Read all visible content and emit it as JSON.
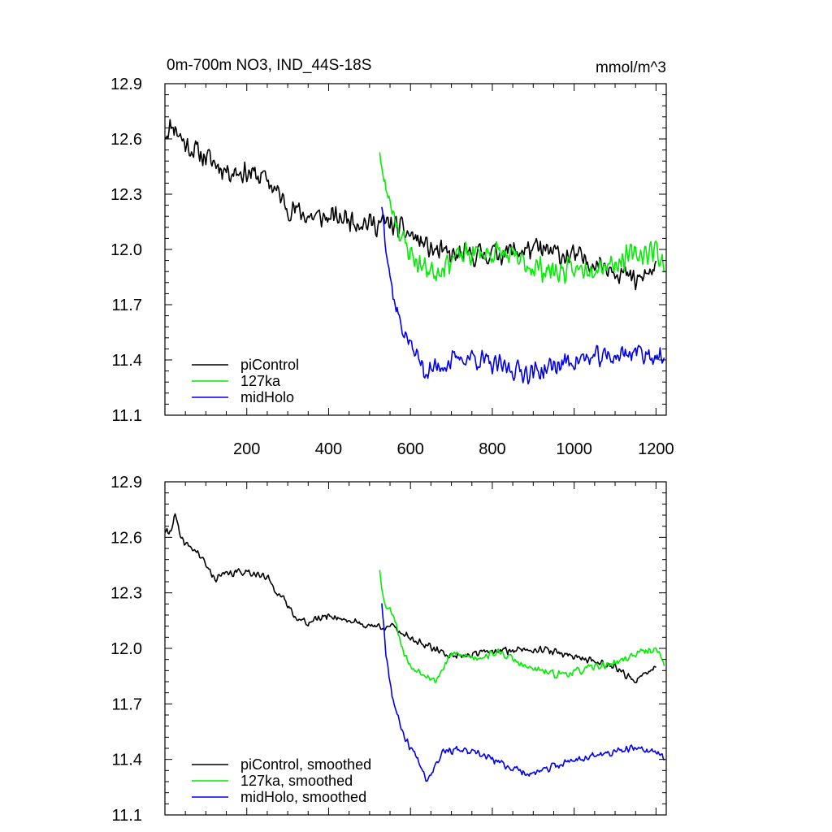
{
  "chart_data": [
    {
      "type": "line",
      "title": "0m-700m NO3, IND_44S-18S",
      "units": "mmol/m^3",
      "xlim": [
        0,
        1225
      ],
      "ylim": [
        11.1,
        12.9
      ],
      "xticks": [
        200,
        400,
        600,
        800,
        1000,
        1200
      ],
      "yticks": [
        11.1,
        11.4,
        11.7,
        12.0,
        12.3,
        12.6,
        12.9
      ],
      "ytick_labels": [
        "11.1",
        "11.4",
        "11.7",
        "12.0",
        "12.3",
        "12.6",
        "12.9"
      ],
      "show_xtick_labels": true,
      "legend_position": "bottom-left",
      "series": [
        {
          "name": "piControl",
          "color": "#000000",
          "noise": 0.075,
          "seed": 11,
          "points": [
            [
              0,
              12.63
            ],
            [
              20,
              12.68
            ],
            [
              50,
              12.57
            ],
            [
              100,
              12.5
            ],
            [
              150,
              12.43
            ],
            [
              200,
              12.42
            ],
            [
              250,
              12.38
            ],
            [
              300,
              12.23
            ],
            [
              350,
              12.18
            ],
            [
              400,
              12.17
            ],
            [
              450,
              12.17
            ],
            [
              500,
              12.14
            ],
            [
              550,
              12.14
            ],
            [
              600,
              12.08
            ],
            [
              650,
              12.0
            ],
            [
              700,
              11.96
            ],
            [
              800,
              11.98
            ],
            [
              900,
              12.0
            ],
            [
              1000,
              11.96
            ],
            [
              1100,
              11.9
            ],
            [
              1150,
              11.82
            ],
            [
              1200,
              11.9
            ]
          ]
        },
        {
          "name": "127ka",
          "color": "#00ee00",
          "noise": 0.08,
          "seed": 23,
          "points": [
            [
              525,
              12.55
            ],
            [
              535,
              12.35
            ],
            [
              560,
              12.2
            ],
            [
              580,
              12.05
            ],
            [
              620,
              11.92
            ],
            [
              660,
              11.88
            ],
            [
              700,
              11.95
            ],
            [
              760,
              11.98
            ],
            [
              820,
              11.98
            ],
            [
              880,
              11.92
            ],
            [
              950,
              11.88
            ],
            [
              1000,
              11.88
            ],
            [
              1050,
              11.92
            ],
            [
              1100,
              11.93
            ],
            [
              1150,
              11.97
            ],
            [
              1200,
              12.0
            ],
            [
              1220,
              11.92
            ]
          ]
        },
        {
          "name": "midHolo",
          "color": "#0000ee",
          "noise": 0.07,
          "seed": 37,
          "points": [
            [
              530,
              12.25
            ],
            [
              545,
              11.95
            ],
            [
              555,
              11.78
            ],
            [
              575,
              11.6
            ],
            [
              600,
              11.48
            ],
            [
              640,
              11.33
            ],
            [
              680,
              11.38
            ],
            [
              750,
              11.42
            ],
            [
              800,
              11.37
            ],
            [
              900,
              11.33
            ],
            [
              1000,
              11.4
            ],
            [
              1100,
              11.42
            ],
            [
              1150,
              11.45
            ],
            [
              1200,
              11.42
            ],
            [
              1220,
              11.39
            ]
          ]
        }
      ]
    },
    {
      "type": "line",
      "title": "",
      "units": "",
      "xlim": [
        0,
        1225
      ],
      "ylim": [
        11.1,
        12.9
      ],
      "xticks": [
        200,
        400,
        600,
        800,
        1000,
        1200
      ],
      "yticks": [
        11.1,
        11.4,
        11.7,
        12.0,
        12.3,
        12.6,
        12.9
      ],
      "ytick_labels": [
        "11.1",
        "11.4",
        "11.7",
        "12.0",
        "12.3",
        "12.6",
        "12.9"
      ],
      "show_xtick_labels": false,
      "legend_position": "bottom-left",
      "series": [
        {
          "name": "piControl, smoothed",
          "color": "#000000",
          "noise": 0.025,
          "seed": 41,
          "points": [
            [
              0,
              12.63
            ],
            [
              10,
              12.62
            ],
            [
              25,
              12.72
            ],
            [
              40,
              12.58
            ],
            [
              80,
              12.52
            ],
            [
              120,
              12.38
            ],
            [
              150,
              12.4
            ],
            [
              200,
              12.42
            ],
            [
              250,
              12.38
            ],
            [
              300,
              12.23
            ],
            [
              330,
              12.15
            ],
            [
              350,
              12.14
            ],
            [
              400,
              12.18
            ],
            [
              450,
              12.15
            ],
            [
              500,
              12.12
            ],
            [
              550,
              12.12
            ],
            [
              600,
              12.06
            ],
            [
              650,
              12.0
            ],
            [
              700,
              11.96
            ],
            [
              800,
              11.98
            ],
            [
              900,
              12.0
            ],
            [
              1000,
              11.96
            ],
            [
              1100,
              11.9
            ],
            [
              1150,
              11.82
            ],
            [
              1200,
              11.9
            ]
          ]
        },
        {
          "name": "127ka, smoothed",
          "color": "#00ee00",
          "noise": 0.025,
          "seed": 53,
          "points": [
            [
              525,
              12.43
            ],
            [
              535,
              12.25
            ],
            [
              560,
              12.18
            ],
            [
              580,
              12.0
            ],
            [
              600,
              11.9
            ],
            [
              640,
              11.86
            ],
            [
              660,
              11.82
            ],
            [
              700,
              11.97
            ],
            [
              760,
              11.95
            ],
            [
              820,
              11.98
            ],
            [
              880,
              11.9
            ],
            [
              950,
              11.86
            ],
            [
              1000,
              11.87
            ],
            [
              1050,
              11.9
            ],
            [
              1100,
              11.92
            ],
            [
              1150,
              11.97
            ],
            [
              1200,
              12.0
            ],
            [
              1220,
              11.92
            ]
          ]
        },
        {
          "name": "midHolo, smoothed",
          "color": "#0000ee",
          "noise": 0.025,
          "seed": 67,
          "points": [
            [
              530,
              12.25
            ],
            [
              540,
              11.98
            ],
            [
              555,
              11.75
            ],
            [
              570,
              11.62
            ],
            [
              590,
              11.5
            ],
            [
              620,
              11.4
            ],
            [
              640,
              11.29
            ],
            [
              680,
              11.45
            ],
            [
              720,
              11.45
            ],
            [
              780,
              11.42
            ],
            [
              850,
              11.35
            ],
            [
              900,
              11.32
            ],
            [
              950,
              11.36
            ],
            [
              1000,
              11.4
            ],
            [
              1050,
              11.42
            ],
            [
              1100,
              11.44
            ],
            [
              1150,
              11.46
            ],
            [
              1200,
              11.44
            ],
            [
              1220,
              11.4
            ]
          ]
        }
      ]
    }
  ]
}
